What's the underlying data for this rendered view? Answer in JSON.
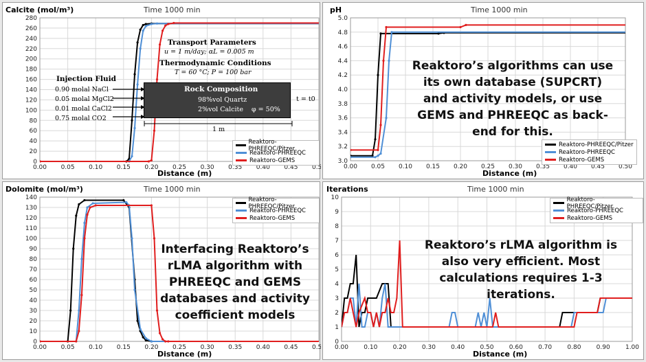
{
  "colors": {
    "black_series": "#000000",
    "blue_series": "#4f8fd6",
    "red_series": "#e01e1e",
    "grid": "#d8d8d8",
    "rock_box": "#3d3d3d"
  },
  "legend_labels": [
    "Reaktoro-PHREEQC/Pitzer",
    "Reaktoro-PHREEQC",
    "Reaktoro-GEMS"
  ],
  "panels": {
    "calcite": {
      "ylabel": "Calcite (mol/m³)",
      "title": "Time 1000 min",
      "xlabel": "Distance (m)",
      "diagram": {
        "transport_title": "Transport Parameters",
        "transport_params": "u = 1 m/day; αL = 0.005 m",
        "thermo_title": "Thermodynamic Conditions",
        "thermo_params": "T = 60 °C; P = 100 bar",
        "injection_title": "Injection Fluid",
        "injection_lines": [
          "0.90 molal NaCl",
          "0.05 molal MgCl2",
          "0.01 molal CaCl2",
          "0.75 molal CO2"
        ],
        "rock_title": "Rock Composition",
        "rock_lines": [
          "98%vol Quartz",
          "2%vol Calcite"
        ],
        "porosity": "φ = 50%",
        "time_label": "t = t0",
        "length_label": "1 m"
      }
    },
    "ph": {
      "ylabel": "pH",
      "title": "Time 1000 min",
      "xlabel": "Distance (m)",
      "callout": "Reaktoro’s algorithms can use its own database (SUPCRT) and activity models, or use GEMS and PHREEQC as back-end for this."
    },
    "dolomite": {
      "ylabel": "Dolomite (mol/m³)",
      "title": "Time 1000 min",
      "xlabel": "Distance (m)",
      "callout": "Interfacing Reaktoro’s rLMA algorithm with PHREEQC and GEMS databases and activity coefficient models"
    },
    "iterations": {
      "ylabel": "Iterations",
      "title": "Time 1000 min",
      "xlabel": "Distance (m)",
      "callout": "Reaktoro’s rLMA algorithm is also very efficient. Most calculations requires 1-3 iterations."
    }
  },
  "chart_data": [
    {
      "type": "line",
      "id": "calcite",
      "xlabel": "Distance (m)",
      "ylabel": "Calcite (mol/m³)",
      "title": "Time 1000 min",
      "xlim": [
        0,
        0.5
      ],
      "ylim": [
        0,
        280
      ],
      "xticks": [
        0.0,
        0.05,
        0.1,
        0.15,
        0.2,
        0.25,
        0.3,
        0.35,
        0.4,
        0.45,
        0.5
      ],
      "yticks": [
        0,
        20,
        40,
        60,
        80,
        100,
        120,
        140,
        160,
        180,
        200,
        220,
        240,
        260,
        280
      ],
      "series": [
        {
          "name": "Reaktoro-PHREEQC/Pitzer",
          "x": [
            0,
            0.155,
            0.16,
            0.165,
            0.17,
            0.175,
            0.18,
            0.185,
            0.19,
            0.2,
            0.51
          ],
          "y": [
            0,
            0,
            5,
            80,
            170,
            232,
            257,
            266,
            268,
            269,
            269
          ]
        },
        {
          "name": "Reaktoro-PHREEQC",
          "x": [
            0,
            0.16,
            0.165,
            0.17,
            0.175,
            0.18,
            0.185,
            0.19,
            0.2,
            0.21,
            0.51
          ],
          "y": [
            0,
            0,
            10,
            65,
            150,
            220,
            255,
            264,
            268,
            269,
            269
          ]
        },
        {
          "name": "Reaktoro-GEMS",
          "x": [
            0,
            0.195,
            0.2,
            0.205,
            0.21,
            0.215,
            0.22,
            0.225,
            0.23,
            0.24,
            0.51
          ],
          "y": [
            0,
            0,
            2,
            60,
            160,
            228,
            255,
            265,
            268,
            270,
            270
          ]
        }
      ]
    },
    {
      "type": "line",
      "id": "ph",
      "xlabel": "Distance (m)",
      "ylabel": "pH",
      "title": "Time 1000 min",
      "xlim": [
        0,
        0.5
      ],
      "ylim": [
        3.0,
        5.0
      ],
      "xticks": [
        0.0,
        0.05,
        0.1,
        0.15,
        0.2,
        0.25,
        0.3,
        0.35,
        0.4,
        0.45,
        0.5
      ],
      "yticks": [
        3.0,
        3.2,
        3.4,
        3.6,
        3.8,
        4.0,
        4.2,
        4.4,
        4.6,
        4.8,
        5.0
      ],
      "series": [
        {
          "name": "Reaktoro-PHREEQC/Pitzer",
          "x": [
            0,
            0.04,
            0.045,
            0.05,
            0.055,
            0.16,
            0.17,
            0.51
          ],
          "y": [
            3.07,
            3.07,
            3.3,
            4.2,
            4.78,
            4.78,
            4.79,
            4.79
          ]
        },
        {
          "name": "Reaktoro-PHREEQC",
          "x": [
            0,
            0.045,
            0.05,
            0.055,
            0.065,
            0.07,
            0.075,
            0.51
          ],
          "y": [
            3.05,
            3.05,
            3.07,
            3.1,
            3.6,
            4.4,
            4.8,
            4.8
          ]
        },
        {
          "name": "Reaktoro-GEMS",
          "x": [
            0,
            0.05,
            0.055,
            0.06,
            0.065,
            0.2,
            0.21,
            0.51
          ],
          "y": [
            3.15,
            3.15,
            3.5,
            4.4,
            4.87,
            4.87,
            4.9,
            4.9
          ]
        }
      ]
    },
    {
      "type": "line",
      "id": "dolomite",
      "xlabel": "Distance (m)",
      "ylabel": "Dolomite (mol/m³)",
      "title": "Time 1000 min",
      "xlim": [
        0,
        0.5
      ],
      "ylim": [
        0,
        140
      ],
      "xticks": [
        0.0,
        0.05,
        0.1,
        0.15,
        0.2,
        0.25,
        0.3,
        0.35,
        0.4,
        0.45,
        0.5
      ],
      "yticks": [
        0,
        10,
        20,
        30,
        40,
        50,
        60,
        70,
        80,
        90,
        100,
        110,
        120,
        130,
        140
      ],
      "series": [
        {
          "name": "Reaktoro-PHREEQC/Pitzer",
          "x": [
            0,
            0.05,
            0.055,
            0.06,
            0.065,
            0.07,
            0.08,
            0.15,
            0.16,
            0.17,
            0.175,
            0.18,
            0.185,
            0.19,
            0.2,
            0.51
          ],
          "y": [
            0,
            0,
            30,
            90,
            122,
            133,
            137,
            137,
            130,
            60,
            20,
            10,
            4,
            1,
            0,
            0
          ]
        },
        {
          "name": "Reaktoro-PHREEQC",
          "x": [
            0,
            0.065,
            0.07,
            0.075,
            0.08,
            0.085,
            0.095,
            0.155,
            0.16,
            0.165,
            0.17,
            0.18,
            0.19,
            0.2,
            0.51
          ],
          "y": [
            0,
            0,
            30,
            80,
            115,
            130,
            134,
            135,
            132,
            100,
            50,
            12,
            3,
            0,
            0
          ]
        },
        {
          "name": "Reaktoro-GEMS",
          "x": [
            0,
            0.065,
            0.07,
            0.075,
            0.08,
            0.085,
            0.09,
            0.1,
            0.2,
            0.205,
            0.21,
            0.215,
            0.22,
            0.225,
            0.23,
            0.51
          ],
          "y": [
            0,
            0,
            10,
            45,
            100,
            123,
            130,
            132,
            132,
            100,
            30,
            8,
            2,
            0,
            0,
            0
          ]
        }
      ]
    },
    {
      "type": "line",
      "id": "iterations",
      "xlabel": "Distance (m)",
      "ylabel": "Iterations",
      "title": "Time 1000 min",
      "xlim": [
        0,
        1.0
      ],
      "ylim": [
        0,
        10
      ],
      "xticks": [
        0.0,
        0.1,
        0.2,
        0.3,
        0.4,
        0.5,
        0.6,
        0.7,
        0.8,
        0.9,
        1.0
      ],
      "yticks": [
        0,
        1,
        2,
        3,
        4,
        5,
        6,
        7,
        8,
        9,
        10
      ],
      "series": [
        {
          "name": "Reaktoro-PHREEQC/Pitzer",
          "x": [
            0,
            0.01,
            0.02,
            0.03,
            0.04,
            0.05,
            0.06,
            0.07,
            0.08,
            0.09,
            0.1,
            0.12,
            0.14,
            0.16,
            0.17,
            0.18,
            0.75,
            0.76,
            0.77,
            0.88,
            0.89,
            0.9,
            1.0
          ],
          "y": [
            1,
            3,
            3,
            4,
            4,
            6,
            1,
            2,
            2,
            3,
            3,
            3,
            4,
            4,
            1,
            1,
            1,
            2,
            2,
            2,
            3,
            3,
            3
          ]
        },
        {
          "name": "Reaktoro-PHREEQC",
          "x": [
            0,
            0.01,
            0.02,
            0.03,
            0.04,
            0.05,
            0.06,
            0.07,
            0.08,
            0.09,
            0.1,
            0.11,
            0.12,
            0.13,
            0.14,
            0.15,
            0.16,
            0.17,
            0.37,
            0.38,
            0.39,
            0.4,
            0.46,
            0.47,
            0.48,
            0.49,
            0.5,
            0.51,
            0.52,
            0.79,
            0.8,
            0.9,
            0.91,
            0.92,
            1.0
          ],
          "y": [
            1,
            2,
            2,
            3,
            3,
            1,
            4,
            1,
            1,
            2,
            2,
            1,
            2,
            1,
            3,
            4,
            1,
            1,
            1,
            2,
            2,
            1,
            1,
            2,
            1,
            2,
            1,
            3,
            1,
            1,
            2,
            2,
            3,
            3,
            3
          ]
        },
        {
          "name": "Reaktoro-GEMS",
          "x": [
            0,
            0.01,
            0.02,
            0.03,
            0.04,
            0.05,
            0.06,
            0.08,
            0.09,
            0.1,
            0.11,
            0.12,
            0.13,
            0.14,
            0.15,
            0.16,
            0.17,
            0.18,
            0.19,
            0.2,
            0.21,
            0.52,
            0.53,
            0.54,
            0.8,
            0.81,
            0.88,
            0.89,
            1.0
          ],
          "y": [
            1,
            2,
            2,
            3,
            2,
            1,
            2,
            3,
            2,
            2,
            1,
            2,
            1,
            2,
            2,
            3,
            2,
            2,
            3,
            7,
            1,
            1,
            2,
            1,
            1,
            2,
            2,
            3,
            3
          ]
        }
      ]
    }
  ]
}
